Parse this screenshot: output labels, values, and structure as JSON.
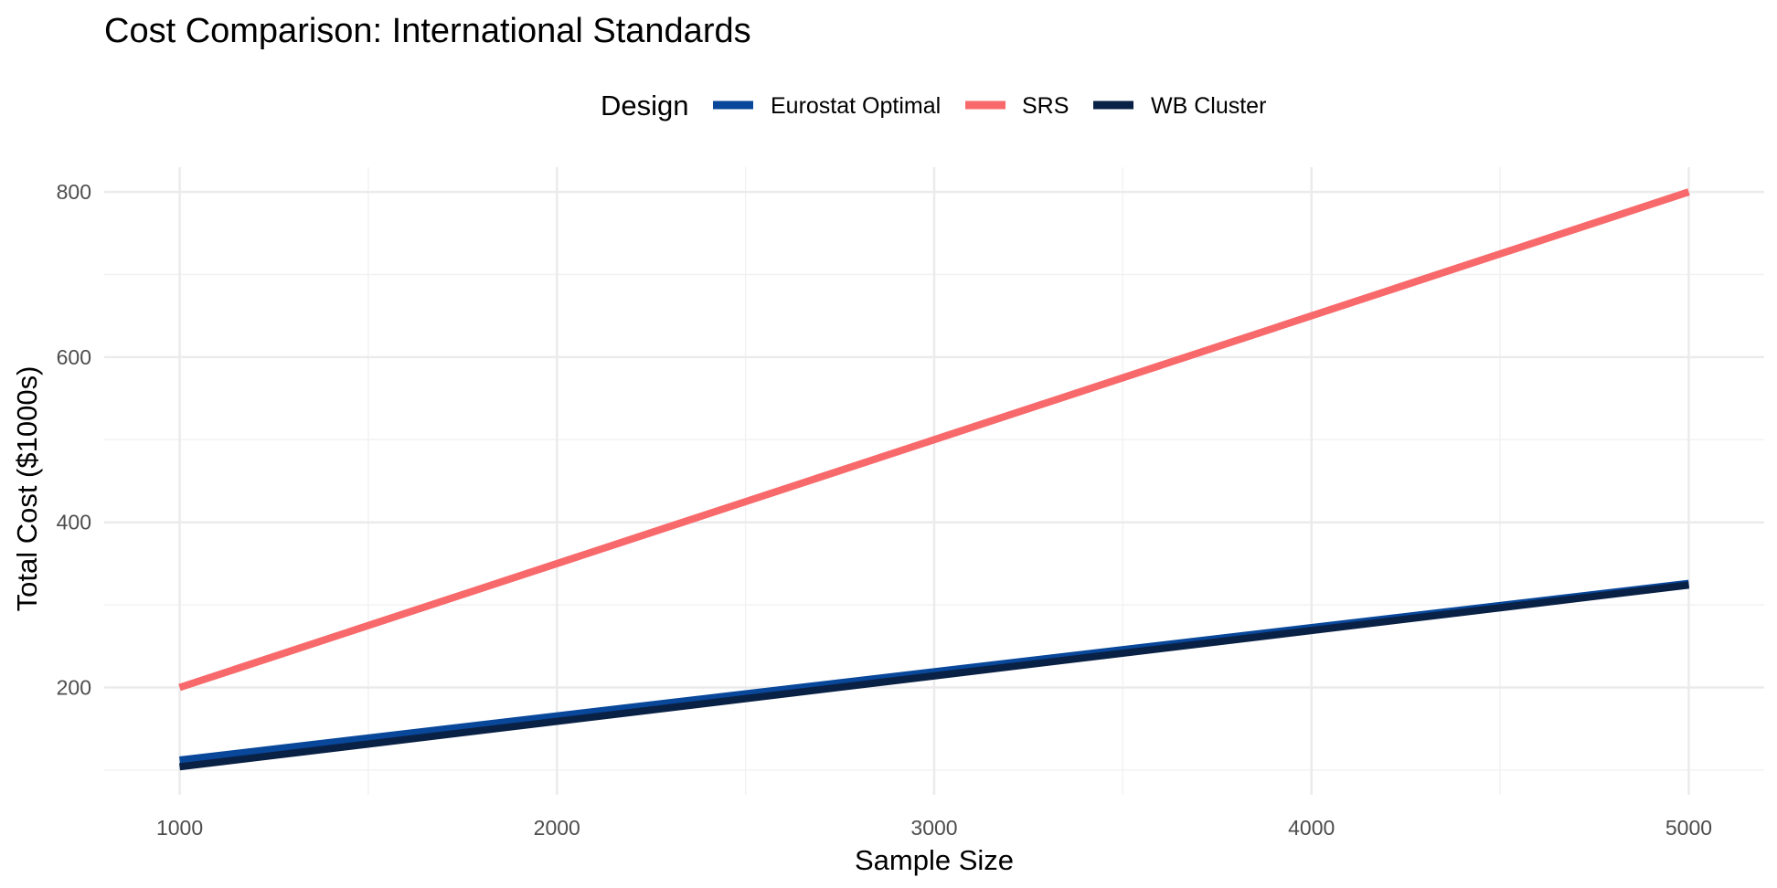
{
  "chart_data": {
    "type": "line",
    "title": "Cost Comparison: International Standards",
    "xlabel": "Sample Size",
    "ylabel": "Total Cost ($1000s)",
    "xlim": [
      800,
      5200
    ],
    "ylim": [
      70,
      830
    ],
    "x_ticks": [
      1000,
      2000,
      3000,
      4000,
      5000
    ],
    "y_ticks": [
      200,
      400,
      600,
      800
    ],
    "grid": true,
    "legend": {
      "title": "Design",
      "position": "top"
    },
    "series": [
      {
        "name": "Eurostat Optimal",
        "color": "#08479A",
        "x": [
          1000,
          5000
        ],
        "y": [
          112,
          326
        ]
      },
      {
        "name": "SRS",
        "color": "#F8696B",
        "x": [
          1000,
          5000
        ],
        "y": [
          200,
          800
        ]
      },
      {
        "name": "WB Cluster",
        "color": "#0A2146",
        "x": [
          1000,
          5000
        ],
        "y": [
          104,
          324
        ]
      }
    ]
  }
}
